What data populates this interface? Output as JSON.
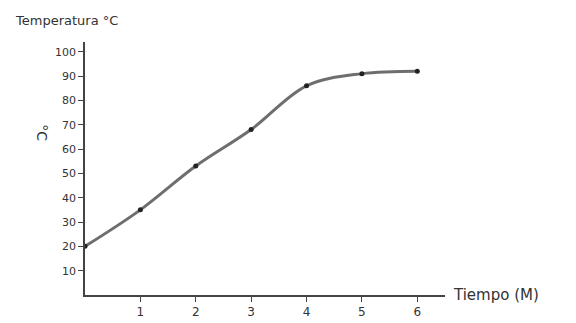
{
  "chart_data": {
    "type": "line",
    "xlabel": "Tiempo (M)",
    "ylabel": "Temperatura °C",
    "annotations": [
      {
        "text": "°C"
      }
    ],
    "x": [
      0,
      1,
      2,
      3,
      4,
      5,
      6
    ],
    "values": [
      20,
      35,
      53,
      68,
      86,
      91,
      92
    ],
    "color": "#6e6e6e",
    "marker": "circle",
    "line_style": "solid",
    "xlim": [
      0,
      6.5
    ],
    "xticks": [
      1,
      2,
      3,
      4,
      5,
      6
    ],
    "ylim": [
      0,
      104
    ],
    "yticks": [
      10,
      20,
      30,
      40,
      50,
      60,
      70,
      80,
      90,
      100
    ],
    "grid": false
  }
}
